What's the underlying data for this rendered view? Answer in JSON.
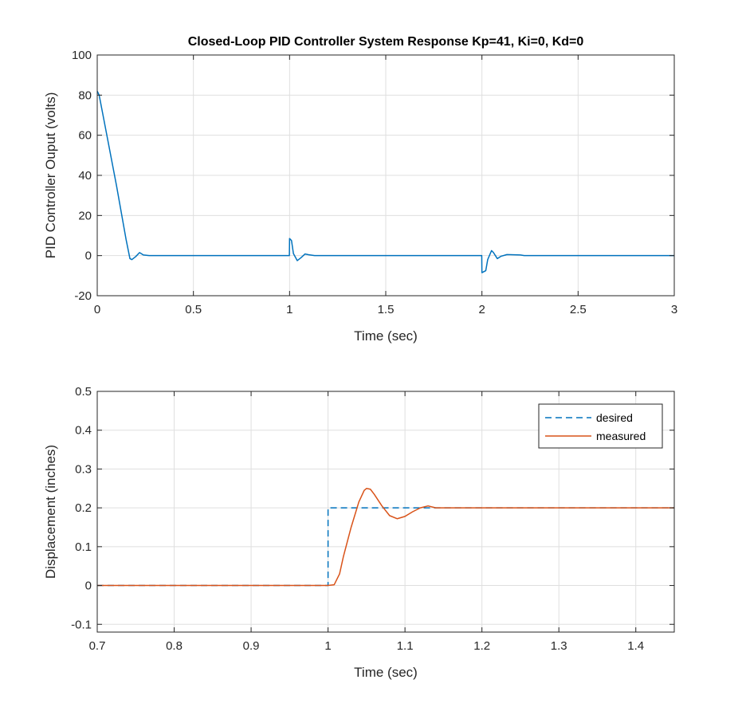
{
  "chart_data": [
    {
      "type": "line",
      "title": "Closed-Loop PID Controller System Response Kp=41, Ki=0, Kd=0",
      "xlabel": "Time (sec)",
      "ylabel": "PID Controller Ouput (volts)",
      "xlim": [
        0,
        3
      ],
      "ylim": [
        -20,
        100
      ],
      "xticks": [
        "0",
        "0.5",
        "1",
        "1.5",
        "2",
        "2.5",
        "3"
      ],
      "yticks": [
        "-20",
        "0",
        "20",
        "40",
        "60",
        "80",
        "100"
      ],
      "grid": true,
      "series": [
        {
          "color": "#0072BD",
          "style": "solid",
          "points": [
            [
              0,
              82
            ],
            [
              0.01,
              80
            ],
            [
              0.05,
              60
            ],
            [
              0.1,
              35
            ],
            [
              0.15,
              8
            ],
            [
              0.17,
              -1.5
            ],
            [
              0.18,
              -2
            ],
            [
              0.2,
              -0.5
            ],
            [
              0.22,
              1.5
            ],
            [
              0.24,
              0.3
            ],
            [
              0.27,
              0
            ],
            [
              0.999,
              0
            ],
            [
              1.0,
              8.5
            ],
            [
              1.01,
              7.5
            ],
            [
              1.02,
              1
            ],
            [
              1.04,
              -2.5
            ],
            [
              1.06,
              -1
            ],
            [
              1.08,
              0.8
            ],
            [
              1.1,
              0.4
            ],
            [
              1.13,
              0
            ],
            [
              1.999,
              0
            ],
            [
              2.0,
              -8.5
            ],
            [
              2.02,
              -7.5
            ],
            [
              2.03,
              -2
            ],
            [
              2.05,
              2.5
            ],
            [
              2.06,
              1.5
            ],
            [
              2.08,
              -1.5
            ],
            [
              2.1,
              -0.3
            ],
            [
              2.13,
              0.5
            ],
            [
              2.2,
              0.3
            ],
            [
              2.22,
              0
            ],
            [
              3.0,
              0
            ]
          ]
        }
      ]
    },
    {
      "type": "line",
      "title": "",
      "xlabel": "Time (sec)",
      "ylabel": "Displacement (inches)",
      "xlim": [
        0.7,
        1.45
      ],
      "ylim": [
        -0.12,
        0.5
      ],
      "xticks": [
        "0.7",
        "0.8",
        "0.9",
        "1",
        "1.1",
        "1.2",
        "1.3",
        "1.4"
      ],
      "yticks": [
        "-0.1",
        "0",
        "0.1",
        "0.2",
        "0.3",
        "0.4",
        "0.5"
      ],
      "grid": true,
      "legend_position": "top-right",
      "series": [
        {
          "name": "desired",
          "color": "#0072BD",
          "style": "dashed",
          "points": [
            [
              0.7,
              0
            ],
            [
              1.0,
              0
            ],
            [
              1.0,
              0.2
            ],
            [
              1.45,
              0.2
            ]
          ]
        },
        {
          "name": "measured",
          "color": "#D95319",
          "style": "solid",
          "points": [
            [
              0.7,
              0
            ],
            [
              1.0,
              0
            ],
            [
              1.008,
              0.002
            ],
            [
              1.015,
              0.03
            ],
            [
              1.02,
              0.075
            ],
            [
              1.03,
              0.15
            ],
            [
              1.04,
              0.215
            ],
            [
              1.047,
              0.245
            ],
            [
              1.05,
              0.25
            ],
            [
              1.055,
              0.248
            ],
            [
              1.06,
              0.235
            ],
            [
              1.07,
              0.205
            ],
            [
              1.08,
              0.18
            ],
            [
              1.09,
              0.172
            ],
            [
              1.1,
              0.178
            ],
            [
              1.11,
              0.19
            ],
            [
              1.12,
              0.2
            ],
            [
              1.13,
              0.205
            ],
            [
              1.14,
              0.2
            ],
            [
              1.45,
              0.2
            ]
          ]
        }
      ]
    }
  ]
}
